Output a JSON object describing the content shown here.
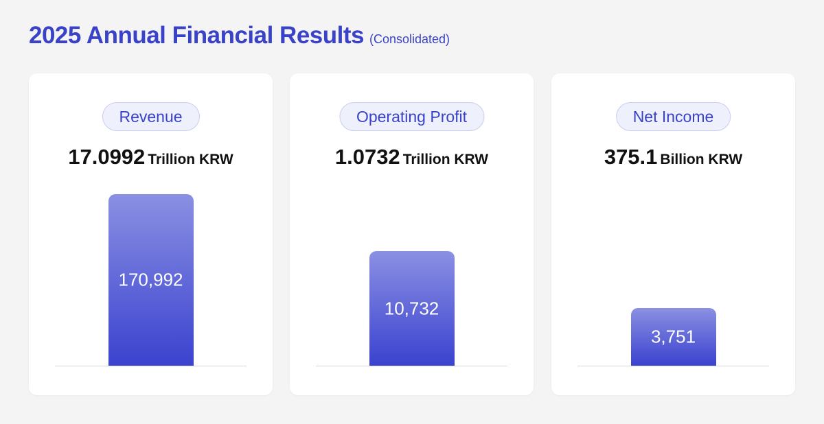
{
  "header": {
    "title": "2025 Annual Financial Results",
    "subtitle": "(Consolidated)"
  },
  "colors": {
    "accent": "#3a43c8",
    "bar_top": "#8a90e2",
    "bar_bottom": "#3b42cf"
  },
  "chart_data": {
    "type": "bar",
    "title": "2025 Annual Financial Results (Consolidated)",
    "categories": [
      "Revenue",
      "Operating Profit",
      "Net Income"
    ],
    "values": [
      170992,
      10732,
      3751
    ],
    "value_labels": [
      "170,992",
      "10,732",
      "3,751"
    ],
    "headline_values": [
      "17.0992",
      "1.0732",
      "375.1"
    ],
    "headline_units": [
      "Trillion KRW",
      "Trillion KRW",
      "Billion KRW"
    ],
    "grid": false,
    "legend": "none"
  }
}
